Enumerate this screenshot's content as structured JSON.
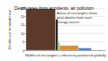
{
  "chart_data": {
    "type": "variable_width_bar",
    "title": "Death rates from accidents, air pollution",
    "ylabel": "Deaths per terawatt-hour",
    "xlabel": "Widths of rectangles = electricity produced globally",
    "annotations": [
      "Areas of rectangles show total deaths from each energy source"
    ],
    "values": [
      24.6,
      18.4,
      4.6,
      2.8,
      1.3,
      0.04,
      0.03,
      0.02
    ],
    "widths": [
      36,
      3,
      2,
      23,
      16,
      5,
      10,
      2
    ],
    "colors": [
      "#5b3a29",
      "#222222",
      "#8fae3a",
      "#d98e36",
      "#3a7bd5",
      "#7fc8e8",
      "#c9c93a",
      "#f5d800"
    ],
    "xlim": [
      0,
      97
    ],
    "ylim": [
      0,
      25
    ],
    "yticks": [
      0,
      5,
      10,
      15,
      20,
      25
    ],
    "grid": true,
    "tick_labels": "y"
  }
}
